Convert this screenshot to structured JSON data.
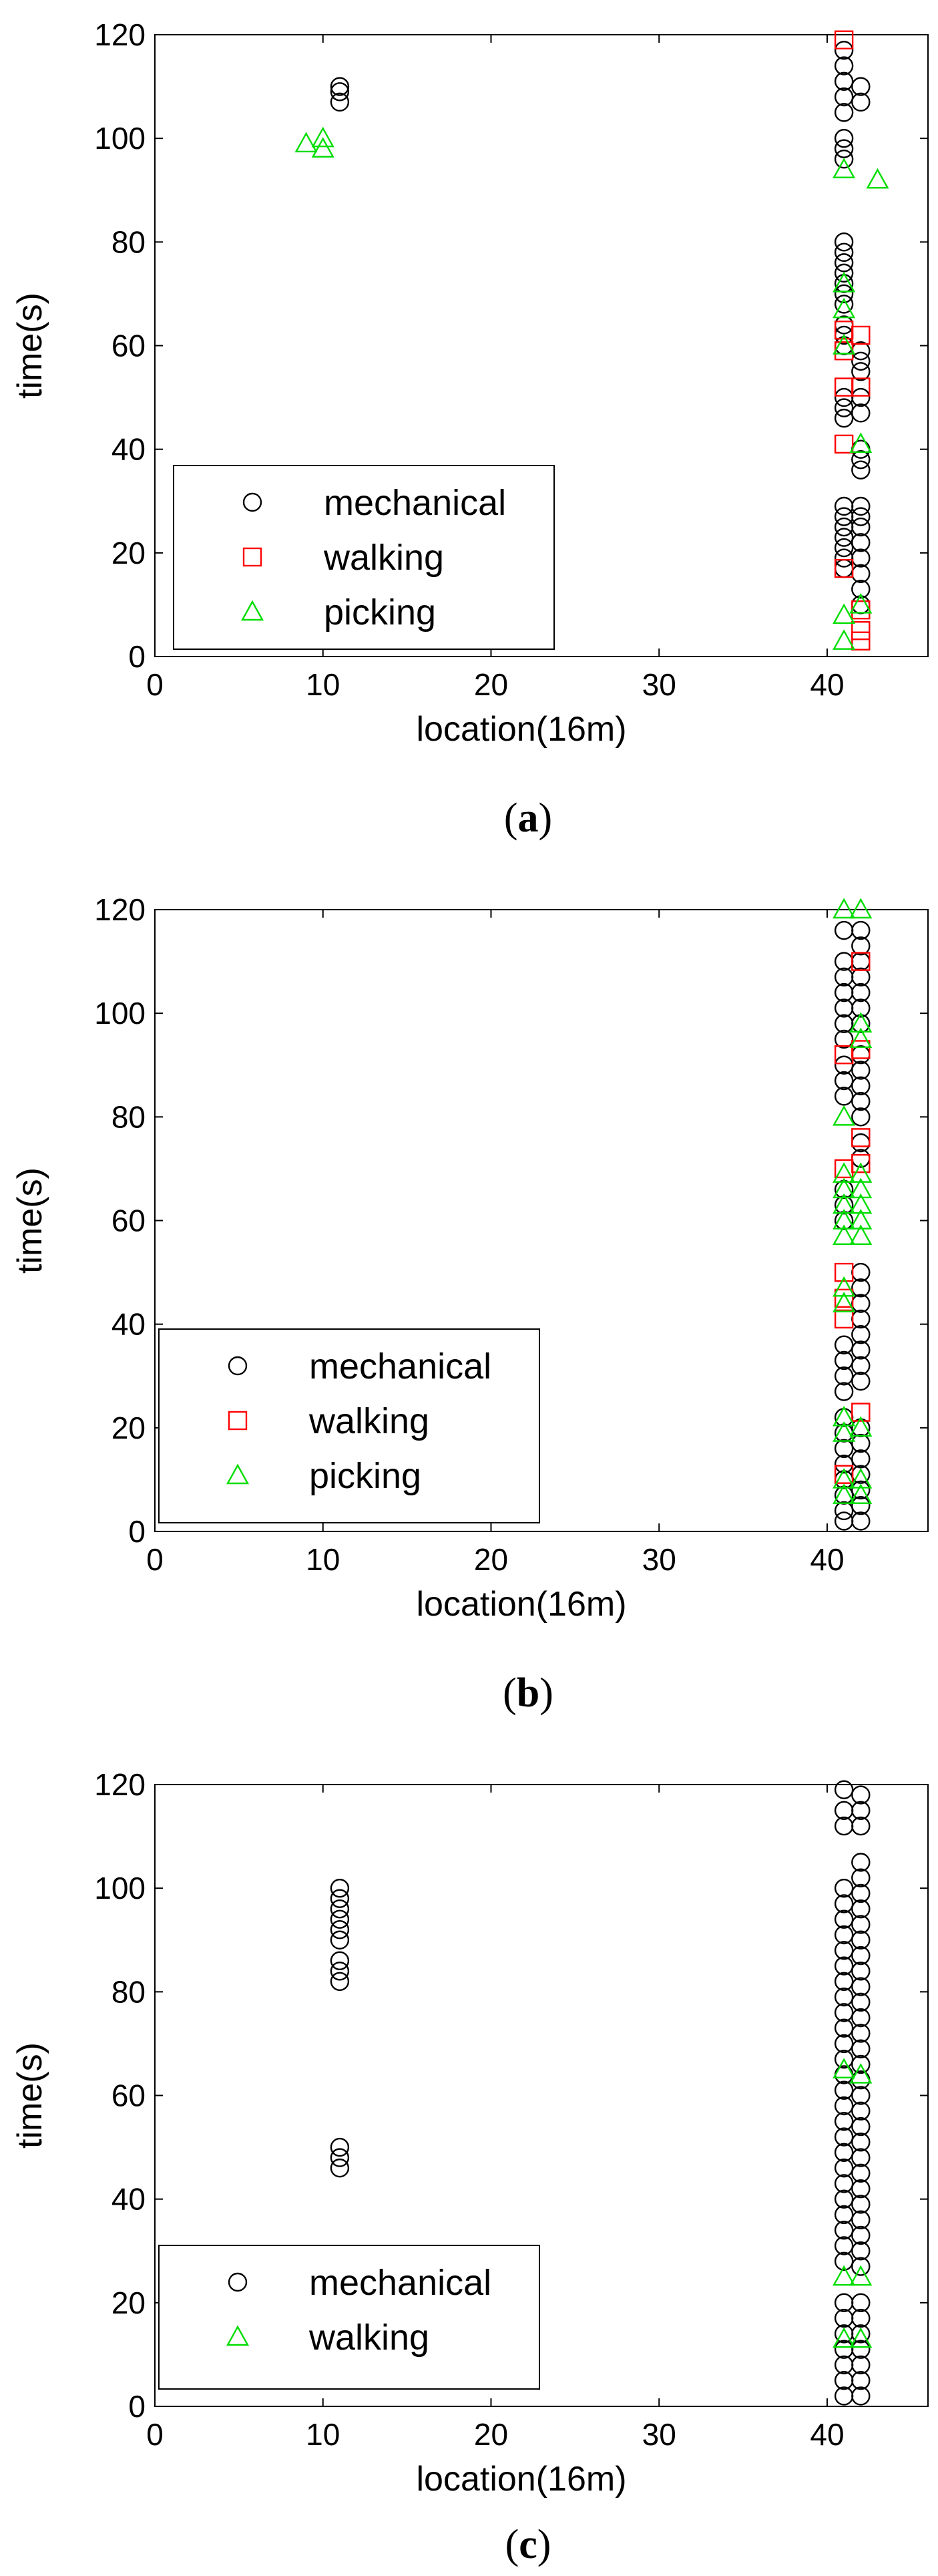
{
  "chart_data": [
    {
      "type": "scatter",
      "caption": "(a)",
      "caption_bold": "a",
      "xlabel": "location(16m)",
      "ylabel": "time(s)",
      "xlim": [
        0,
        46
      ],
      "ylim": [
        0,
        120
      ],
      "xticks": [
        0,
        10,
        20,
        30,
        40
      ],
      "yticks": [
        0,
        20,
        40,
        60,
        80,
        100,
        120
      ],
      "legend_position": "bottom-left",
      "series": [
        {
          "name": "mechanical",
          "marker": "circle",
          "color": "#000000",
          "points": [
            [
              11,
              107
            ],
            [
              11,
              109
            ],
            [
              11,
              110
            ],
            [
              41,
              117
            ],
            [
              41,
              114
            ],
            [
              41,
              111
            ],
            [
              41,
              108
            ],
            [
              41,
              105
            ],
            [
              41,
              100
            ],
            [
              41,
              98
            ],
            [
              41,
              96
            ],
            [
              41,
              80
            ],
            [
              41,
              78
            ],
            [
              41,
              76
            ],
            [
              41,
              74
            ],
            [
              41,
              72
            ],
            [
              41,
              70
            ],
            [
              41,
              68
            ],
            [
              41,
              64
            ],
            [
              41,
              62
            ],
            [
              41,
              60
            ],
            [
              41,
              50
            ],
            [
              41,
              48
            ],
            [
              41,
              46
            ],
            [
              41,
              29
            ],
            [
              41,
              27
            ],
            [
              41,
              25
            ],
            [
              41,
              23
            ],
            [
              41,
              21
            ],
            [
              41,
              19
            ],
            [
              41,
              17
            ],
            [
              42,
              110
            ],
            [
              42,
              107
            ],
            [
              42,
              59
            ],
            [
              42,
              57
            ],
            [
              42,
              55
            ],
            [
              42,
              50
            ],
            [
              42,
              47
            ],
            [
              42,
              40
            ],
            [
              42,
              38
            ],
            [
              42,
              36
            ],
            [
              42,
              29
            ],
            [
              42,
              27
            ],
            [
              42,
              25
            ],
            [
              42,
              22
            ],
            [
              42,
              19
            ],
            [
              42,
              16
            ],
            [
              42,
              13
            ],
            [
              42,
              10
            ]
          ]
        },
        {
          "name": "walking",
          "marker": "square",
          "color": "#ff0000",
          "points": [
            [
              41,
              119
            ],
            [
              41,
              63
            ],
            [
              41,
              59
            ],
            [
              41,
              52
            ],
            [
              41,
              41
            ],
            [
              41,
              17
            ],
            [
              42,
              62
            ],
            [
              42,
              52
            ],
            [
              42,
              9
            ],
            [
              42,
              5
            ],
            [
              42,
              3
            ]
          ]
        },
        {
          "name": "picking",
          "marker": "triangle",
          "color": "#00dd00",
          "points": [
            [
              9,
              99
            ],
            [
              10,
              100
            ],
            [
              10,
              98
            ],
            [
              41,
              94
            ],
            [
              41,
              72
            ],
            [
              41,
              67
            ],
            [
              41,
              60
            ],
            [
              41,
              8
            ],
            [
              41,
              3
            ],
            [
              42,
              41
            ],
            [
              42,
              10
            ],
            [
              43,
              92
            ]
          ]
        }
      ]
    },
    {
      "type": "scatter",
      "caption": "(b)",
      "caption_bold": "b",
      "xlabel": "location(16m)",
      "ylabel": "time(s)",
      "xlim": [
        0,
        46
      ],
      "ylim": [
        0,
        120
      ],
      "xticks": [
        0,
        10,
        20,
        30,
        40
      ],
      "yticks": [
        0,
        20,
        40,
        60,
        80,
        100,
        120
      ],
      "legend_position": "bottom-left",
      "series": [
        {
          "name": "mechanical",
          "marker": "circle",
          "color": "#000000",
          "points": [
            [
              41,
              116
            ],
            [
              41,
              110
            ],
            [
              41,
              107
            ],
            [
              41,
              104
            ],
            [
              41,
              101
            ],
            [
              41,
              98
            ],
            [
              41,
              95
            ],
            [
              41,
              90
            ],
            [
              41,
              87
            ],
            [
              41,
              84
            ],
            [
              41,
              66
            ],
            [
              41,
              63
            ],
            [
              41,
              60
            ],
            [
              41,
              36
            ],
            [
              41,
              33
            ],
            [
              41,
              30
            ],
            [
              41,
              27
            ],
            [
              41,
              22
            ],
            [
              41,
              19
            ],
            [
              41,
              16
            ],
            [
              41,
              13
            ],
            [
              41,
              10
            ],
            [
              41,
              7
            ],
            [
              41,
              4
            ],
            [
              41,
              2
            ],
            [
              42,
              116
            ],
            [
              42,
              113
            ],
            [
              42,
              110
            ],
            [
              42,
              107
            ],
            [
              42,
              104
            ],
            [
              42,
              101
            ],
            [
              42,
              98
            ],
            [
              42,
              92
            ],
            [
              42,
              89
            ],
            [
              42,
              86
            ],
            [
              42,
              83
            ],
            [
              42,
              80
            ],
            [
              42,
              75
            ],
            [
              42,
              72
            ],
            [
              42,
              50
            ],
            [
              42,
              47
            ],
            [
              42,
              44
            ],
            [
              42,
              41
            ],
            [
              42,
              38
            ],
            [
              42,
              35
            ],
            [
              42,
              32
            ],
            [
              42,
              29
            ],
            [
              42,
              20
            ],
            [
              42,
              17
            ],
            [
              42,
              14
            ],
            [
              42,
              11
            ],
            [
              42,
              8
            ],
            [
              42,
              5
            ],
            [
              42,
              2
            ]
          ]
        },
        {
          "name": "walking",
          "marker": "square",
          "color": "#ff0000",
          "points": [
            [
              41,
              92
            ],
            [
              41,
              70
            ],
            [
              41,
              50
            ],
            [
              41,
              45
            ],
            [
              41,
              41
            ],
            [
              41,
              11
            ],
            [
              42,
              110
            ],
            [
              42,
              93
            ],
            [
              42,
              76
            ],
            [
              42,
              71
            ],
            [
              42,
              23
            ]
          ]
        },
        {
          "name": "picking",
          "marker": "triangle",
          "color": "#00dd00",
          "points": [
            [
              41,
              120
            ],
            [
              41,
              80
            ],
            [
              41,
              69
            ],
            [
              41,
              66
            ],
            [
              41,
              63
            ],
            [
              41,
              60
            ],
            [
              41,
              57
            ],
            [
              41,
              47
            ],
            [
              41,
              44
            ],
            [
              41,
              22
            ],
            [
              41,
              19
            ],
            [
              41,
              10
            ],
            [
              41,
              7
            ],
            [
              42,
              120
            ],
            [
              42,
              98
            ],
            [
              42,
              95
            ],
            [
              42,
              69
            ],
            [
              42,
              66
            ],
            [
              42,
              63
            ],
            [
              42,
              60
            ],
            [
              42,
              57
            ],
            [
              42,
              20
            ],
            [
              42,
              10
            ],
            [
              42,
              7
            ]
          ]
        }
      ]
    },
    {
      "type": "scatter",
      "caption": "(c)",
      "caption_bold": "c",
      "xlabel": "location(16m)",
      "ylabel": "time(s)",
      "xlim": [
        0,
        46
      ],
      "ylim": [
        0,
        120
      ],
      "xticks": [
        0,
        10,
        20,
        30,
        40
      ],
      "yticks": [
        0,
        20,
        40,
        60,
        80,
        100,
        120
      ],
      "legend_position": "bottom-left",
      "series": [
        {
          "name": "mechanical",
          "marker": "circle",
          "color": "#000000",
          "points": [
            [
              11,
              100
            ],
            [
              11,
              98
            ],
            [
              11,
              96
            ],
            [
              11,
              94
            ],
            [
              11,
              92
            ],
            [
              11,
              90
            ],
            [
              11,
              86
            ],
            [
              11,
              84
            ],
            [
              11,
              82
            ],
            [
              11,
              50
            ],
            [
              11,
              48
            ],
            [
              11,
              46
            ],
            [
              41,
              119
            ],
            [
              41,
              115
            ],
            [
              41,
              112
            ],
            [
              41,
              100
            ],
            [
              41,
              97
            ],
            [
              41,
              94
            ],
            [
              41,
              91
            ],
            [
              41,
              88
            ],
            [
              41,
              85
            ],
            [
              41,
              82
            ],
            [
              41,
              79
            ],
            [
              41,
              76
            ],
            [
              41,
              73
            ],
            [
              41,
              70
            ],
            [
              41,
              67
            ],
            [
              41,
              64
            ],
            [
              41,
              61
            ],
            [
              41,
              58
            ],
            [
              41,
              55
            ],
            [
              41,
              52
            ],
            [
              41,
              49
            ],
            [
              41,
              46
            ],
            [
              41,
              43
            ],
            [
              41,
              40
            ],
            [
              41,
              37
            ],
            [
              41,
              34
            ],
            [
              41,
              31
            ],
            [
              41,
              28
            ],
            [
              41,
              20
            ],
            [
              41,
              17
            ],
            [
              41,
              14
            ],
            [
              41,
              11
            ],
            [
              41,
              8
            ],
            [
              41,
              5
            ],
            [
              41,
              2
            ],
            [
              42,
              118
            ],
            [
              42,
              115
            ],
            [
              42,
              112
            ],
            [
              42,
              105
            ],
            [
              42,
              102
            ],
            [
              42,
              99
            ],
            [
              42,
              96
            ],
            [
              42,
              93
            ],
            [
              42,
              90
            ],
            [
              42,
              87
            ],
            [
              42,
              84
            ],
            [
              42,
              81
            ],
            [
              42,
              78
            ],
            [
              42,
              75
            ],
            [
              42,
              72
            ],
            [
              42,
              69
            ],
            [
              42,
              66
            ],
            [
              42,
              63
            ],
            [
              42,
              60
            ],
            [
              42,
              57
            ],
            [
              42,
              54
            ],
            [
              42,
              51
            ],
            [
              42,
              48
            ],
            [
              42,
              45
            ],
            [
              42,
              42
            ],
            [
              42,
              39
            ],
            [
              42,
              36
            ],
            [
              42,
              33
            ],
            [
              42,
              30
            ],
            [
              42,
              27
            ],
            [
              42,
              20
            ],
            [
              42,
              17
            ],
            [
              42,
              14
            ],
            [
              42,
              11
            ],
            [
              42,
              8
            ],
            [
              42,
              5
            ],
            [
              42,
              2
            ]
          ]
        },
        {
          "name": "walking",
          "marker": "triangle",
          "color": "#00dd00",
          "points": [
            [
              41,
              65
            ],
            [
              41,
              25
            ],
            [
              41,
              13
            ],
            [
              42,
              64
            ],
            [
              42,
              25
            ],
            [
              42,
              13
            ]
          ]
        }
      ]
    }
  ]
}
